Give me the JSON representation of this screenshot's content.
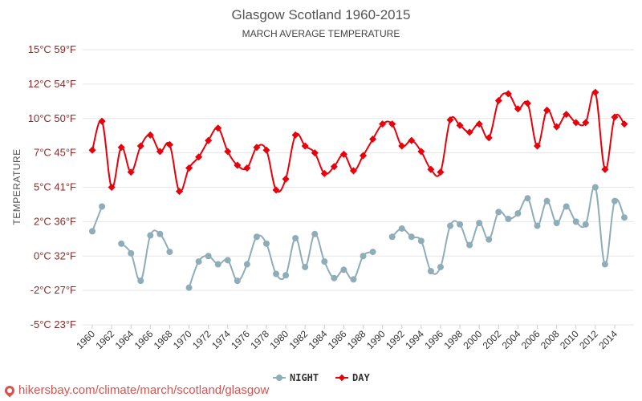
{
  "chart_data": {
    "type": "line",
    "title": "Glasgow Scotland 1960-2015",
    "subtitle": "MARCH AVERAGE TEMPERATURE",
    "ylabel": "TEMPERATURE",
    "xlabel": "",
    "ylim": [
      -5,
      15
    ],
    "y_ticks": [
      {
        "value": 15,
        "label": "15°C 59°F"
      },
      {
        "value": 12.5,
        "label": "12°C 54°F"
      },
      {
        "value": 10,
        "label": "10°C 50°F"
      },
      {
        "value": 7.5,
        "label": "7°C 45°F"
      },
      {
        "value": 5,
        "label": "5°C 41°F"
      },
      {
        "value": 2.5,
        "label": "2°C 36°F"
      },
      {
        "value": 0,
        "label": "0°C 32°F"
      },
      {
        "value": -2.5,
        "label": "-2°C 27°F"
      },
      {
        "value": -5,
        "label": "-5°C 23°F"
      }
    ],
    "x_tick_labels": [
      "1960",
      "1962",
      "1964",
      "1966",
      "1968",
      "1970",
      "1972",
      "1974",
      "1976",
      "1978",
      "1980",
      "1982",
      "1984",
      "1986",
      "1988",
      "1990",
      "1992",
      "1994",
      "1996",
      "1998",
      "2000",
      "2002",
      "2004",
      "2006",
      "2008",
      "2010",
      "2012",
      "2014"
    ],
    "x": [
      1960,
      1961,
      1962,
      1963,
      1964,
      1965,
      1966,
      1967,
      1968,
      1969,
      1970,
      1971,
      1972,
      1973,
      1974,
      1975,
      1976,
      1977,
      1978,
      1979,
      1980,
      1981,
      1982,
      1983,
      1984,
      1985,
      1986,
      1987,
      1988,
      1989,
      1990,
      1991,
      1992,
      1993,
      1994,
      1995,
      1996,
      1997,
      1998,
      1999,
      2000,
      2001,
      2002,
      2003,
      2004,
      2005,
      2006,
      2007,
      2008,
      2009,
      2010,
      2011,
      2012,
      2013,
      2014,
      2015
    ],
    "series": [
      {
        "name": "NIGHT",
        "color": "#8fadb9",
        "values": [
          1.8,
          3.6,
          null,
          0.9,
          0.2,
          -1.8,
          1.5,
          1.6,
          0.3,
          null,
          -2.3,
          -0.4,
          0.0,
          -0.6,
          -0.3,
          -1.8,
          -0.6,
          1.4,
          0.9,
          -1.3,
          -1.4,
          1.3,
          -0.8,
          1.6,
          -0.4,
          -1.6,
          -1.0,
          -1.7,
          0.0,
          0.3,
          null,
          1.4,
          2.0,
          1.4,
          1.1,
          -1.1,
          -0.8,
          2.2,
          2.3,
          0.8,
          2.4,
          1.2,
          3.2,
          2.7,
          3.1,
          4.2,
          2.2,
          4.0,
          2.4,
          3.6,
          2.5,
          2.3,
          5.0,
          -0.6,
          4.0,
          2.8
        ]
      },
      {
        "name": "DAY",
        "color": "#e8000b",
        "values": [
          7.7,
          9.8,
          5.0,
          7.9,
          6.1,
          8.0,
          8.8,
          7.6,
          8.1,
          4.7,
          6.4,
          7.2,
          8.4,
          9.3,
          7.6,
          6.6,
          6.4,
          7.9,
          7.7,
          4.8,
          5.6,
          8.8,
          8.0,
          7.5,
          6.0,
          6.5,
          7.4,
          6.2,
          7.3,
          8.5,
          9.6,
          9.6,
          8.0,
          8.4,
          7.6,
          6.3,
          6.1,
          9.9,
          9.5,
          9.0,
          9.6,
          8.6,
          11.3,
          11.8,
          10.7,
          11.1,
          8.0,
          10.6,
          9.4,
          10.3,
          9.7,
          9.7,
          11.9,
          6.3,
          10.1,
          9.6
        ]
      }
    ],
    "legend_position": "bottom-center",
    "grid": true
  },
  "footer": {
    "url": "hikersbay.com/climate/march/scotland/glasgow",
    "icon": "location-pin-icon"
  }
}
